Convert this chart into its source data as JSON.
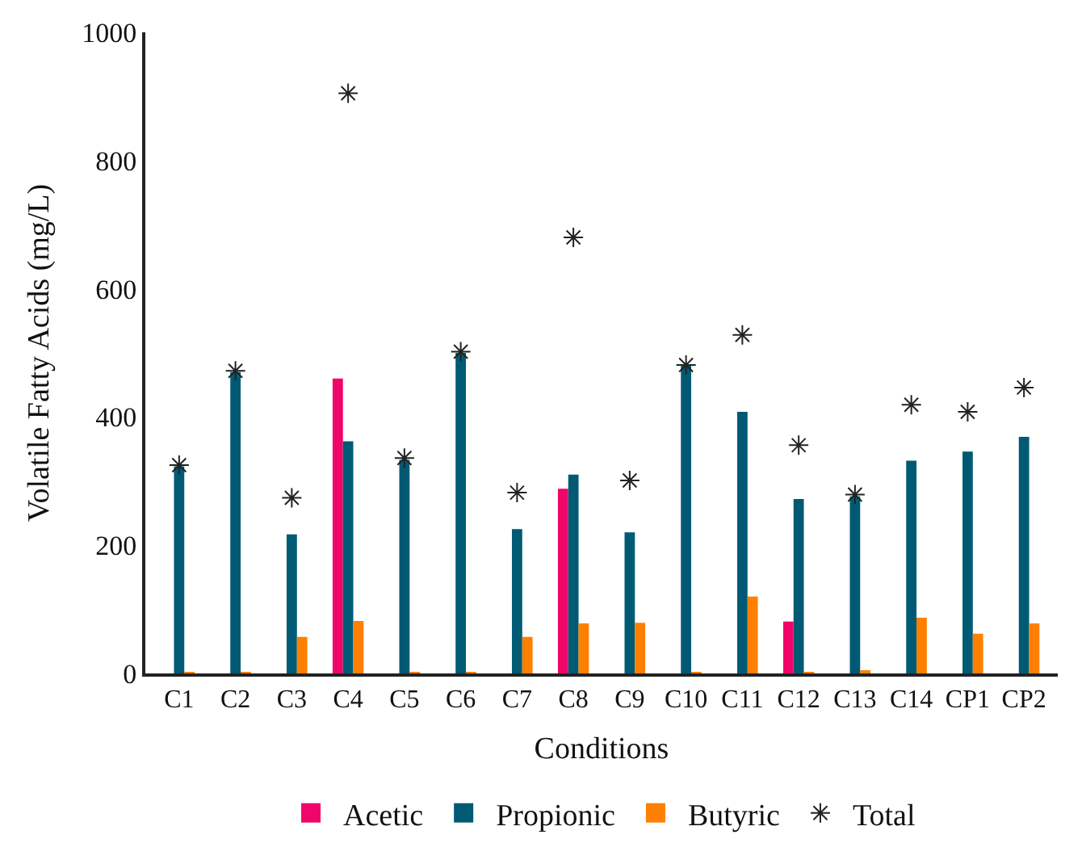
{
  "chart_data": {
    "type": "bar",
    "xlabel": "Conditions",
    "ylabel": "Volatile Fatty Acids (mg/L)",
    "categories": [
      "C1",
      "C2",
      "C3",
      "C4",
      "C5",
      "C6",
      "C7",
      "C8",
      "C9",
      "C10",
      "C11",
      "C12",
      "C13",
      "C14",
      "CP1",
      "CP2"
    ],
    "series": [
      {
        "name": "Acetic",
        "color": "#f0056a",
        "values": [
          0,
          0,
          0,
          460,
          0,
          0,
          0,
          288,
          0,
          0,
          0,
          81,
          0,
          0,
          0,
          0
        ]
      },
      {
        "name": "Propionic",
        "color": "#005a74",
        "values": [
          323,
          470,
          217,
          362,
          333,
          500,
          225,
          310,
          220,
          480,
          408,
          272,
          276,
          332,
          346,
          369
        ]
      },
      {
        "name": "Butyric",
        "color": "#ff7f00",
        "values": [
          2,
          2,
          57,
          82,
          2,
          2,
          57,
          78,
          79,
          2,
          120,
          2,
          4,
          87,
          62,
          78
        ]
      },
      {
        "name": "Total",
        "type": "scatter",
        "marker": "cross",
        "color": "#222222",
        "values": [
          325,
          472,
          274,
          905,
          336,
          502,
          282,
          680,
          301,
          481,
          528,
          356,
          279,
          419,
          408,
          446
        ]
      }
    ],
    "ylim": [
      0,
      1000
    ],
    "yticks": [
      0,
      200,
      400,
      600,
      800,
      1000
    ],
    "legend": "bottom"
  }
}
